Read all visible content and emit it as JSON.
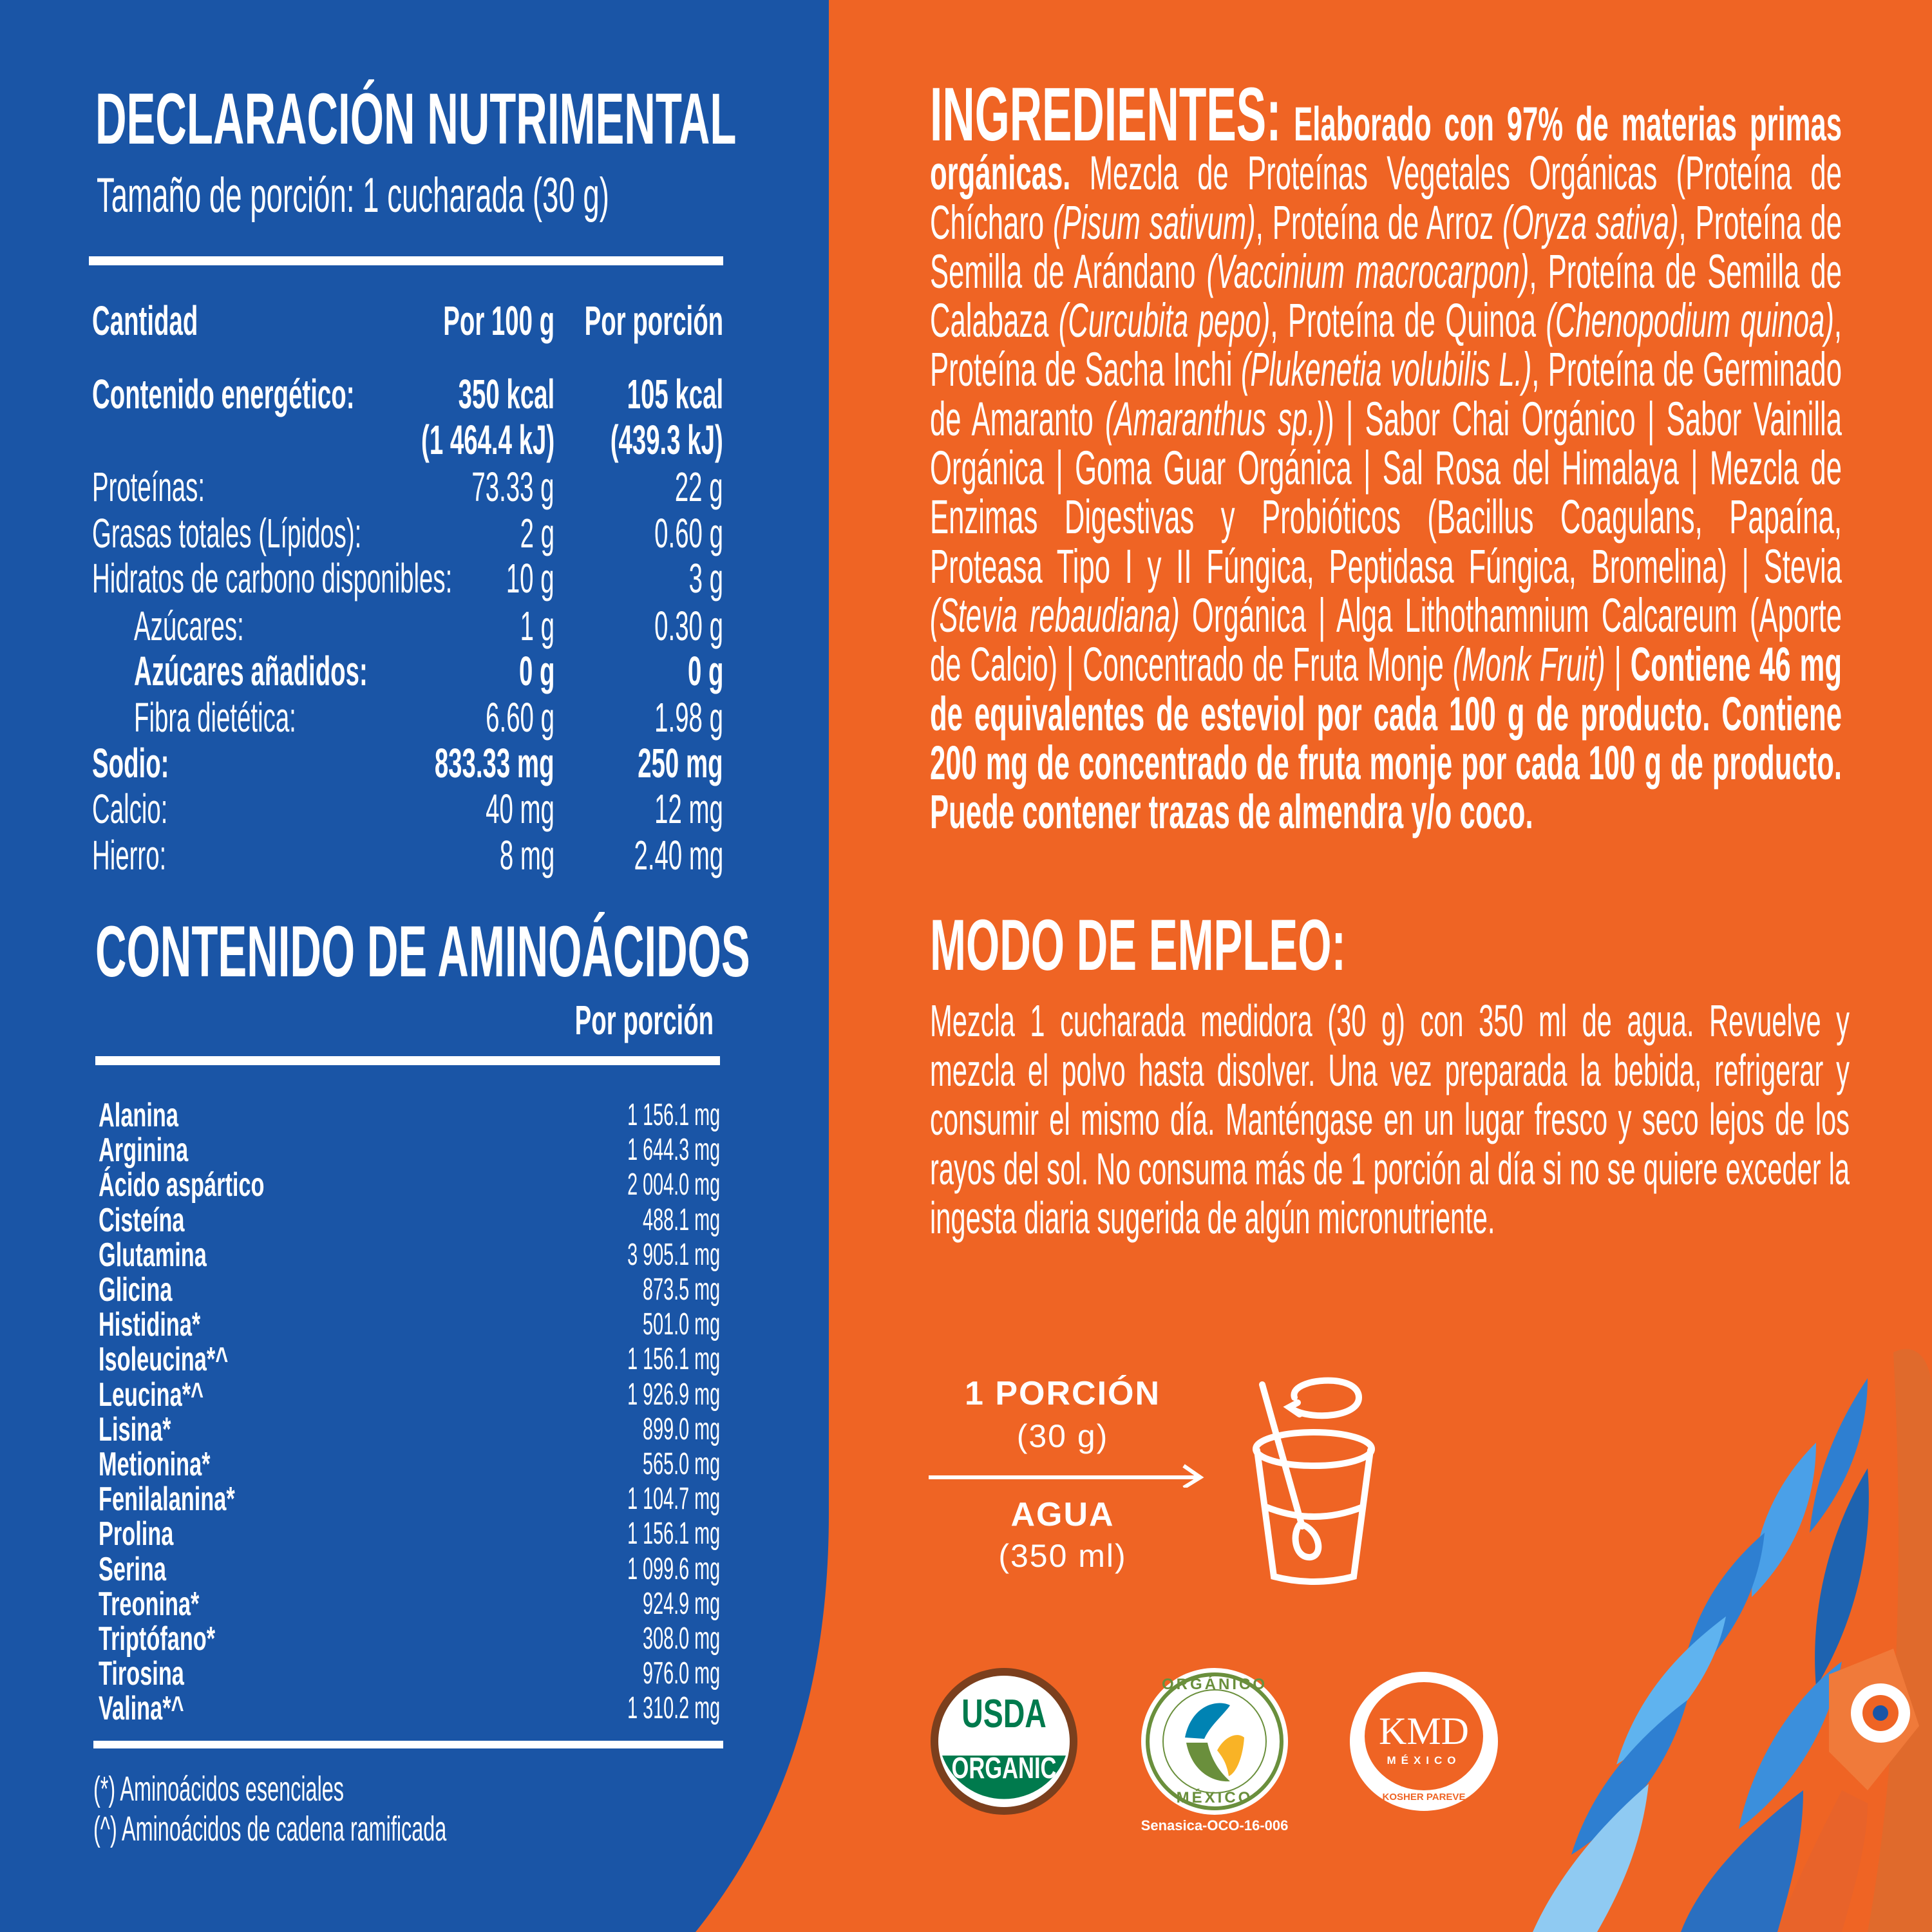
{
  "colors": {
    "blue": "#1a55a6",
    "orange": "#ef6424",
    "white": "#ffffff",
    "usda_green": "#007a4d",
    "usda_brown": "#7b3f1d",
    "organico_green": "#6a8f3c",
    "organico_blue": "#0083b3",
    "organico_yellow": "#f9b326"
  },
  "nutrition": {
    "title": "DECLARACIÓN NUTRIMENTAL",
    "serving": "Tamaño de porción: 1 cucharada (30 g)",
    "headers": [
      "Cantidad",
      "Por 100 g",
      "Por porción"
    ],
    "rows": [
      {
        "label": "Contenido energético:",
        "per100": "350 kcal",
        "perServing": "105 kcal",
        "bold": true,
        "indent": false
      },
      {
        "label": "",
        "per100": "(1 464.4 kJ)",
        "perServing": "(439.3 kJ)",
        "bold": true,
        "indent": false
      },
      {
        "label": "Proteínas:",
        "per100": "73.33 g",
        "perServing": "22 g",
        "bold": false,
        "indent": false
      },
      {
        "label": "Grasas totales (Lípidos):",
        "per100": "2 g",
        "perServing": "0.60 g",
        "bold": false,
        "indent": false
      },
      {
        "label": "Hidratos de carbono disponibles:",
        "per100": "10 g",
        "perServing": "3 g",
        "bold": false,
        "indent": false
      },
      {
        "label": "Azúcares:",
        "per100": "1 g",
        "perServing": "0.30 g",
        "bold": false,
        "indent": true
      },
      {
        "label": "Azúcares añadidos:",
        "per100": "0 g",
        "perServing": "0 g",
        "bold": true,
        "indent": true
      },
      {
        "label": "Fibra dietética:",
        "per100": "6.60 g",
        "perServing": "1.98 g",
        "bold": false,
        "indent": true
      },
      {
        "label": "Sodio:",
        "per100": "833.33 mg",
        "perServing": "250 mg",
        "bold": true,
        "indent": false
      },
      {
        "label": "Calcio:",
        "per100": "40 mg",
        "perServing": "12 mg",
        "bold": false,
        "indent": false
      },
      {
        "label": "Hierro:",
        "per100": "8 mg",
        "perServing": "2.40 mg",
        "bold": false,
        "indent": false
      }
    ]
  },
  "aminoacids": {
    "title": "CONTENIDO DE AMINOÁCIDOS",
    "column": "Por porción",
    "rows": [
      {
        "name": "Alanina",
        "value": "1 156.1 mg"
      },
      {
        "name": "Arginina",
        "value": "1 644.3 mg"
      },
      {
        "name": "Ácido aspártico",
        "value": "2 004.0 mg"
      },
      {
        "name": "Cisteína",
        "value": "488.1 mg"
      },
      {
        "name": "Glutamina",
        "value": "3 905.1 mg"
      },
      {
        "name": "Glicina",
        "value": "873.5 mg"
      },
      {
        "name": "Histidina*",
        "value": "501.0 mg"
      },
      {
        "name": "Isoleucina*^",
        "value": "1 156.1 mg"
      },
      {
        "name": "Leucina*^",
        "value": "1 926.9 mg"
      },
      {
        "name": "Lisina*",
        "value": "899.0 mg"
      },
      {
        "name": "Metionina*",
        "value": "565.0 mg"
      },
      {
        "name": "Fenilalanina*",
        "value": "1 104.7 mg"
      },
      {
        "name": "Prolina",
        "value": "1 156.1 mg"
      },
      {
        "name": "Serina",
        "value": "1 099.6 mg"
      },
      {
        "name": "Treonina*",
        "value": "924.9 mg"
      },
      {
        "name": "Triptófano*",
        "value": "308.0 mg"
      },
      {
        "name": "Tirosina",
        "value": "976.0 mg"
      },
      {
        "name": "Valina*^",
        "value": "1 310.2 mg"
      }
    ],
    "footnotes": [
      "(*)  Aminoácidos esenciales",
      "(^)  Aminoácidos de cadena ramificada"
    ]
  },
  "ingredients": {
    "title": "INGREDIENTES:",
    "segments": [
      {
        "t": " Elaborado con 97% de materias primas orgánicas.",
        "s": "b"
      },
      {
        "t": " Mezcla de Proteínas Vegetales Orgánicas (Proteína de Chícharo ",
        "s": "n"
      },
      {
        "t": "(Pisum sativum)",
        "s": "i"
      },
      {
        "t": ", Proteína de Arroz ",
        "s": "n"
      },
      {
        "t": "(Oryza sativa)",
        "s": "i"
      },
      {
        "t": ", Proteína de Semilla de Arándano ",
        "s": "n"
      },
      {
        "t": "(Vaccinium macrocarpon)",
        "s": "i"
      },
      {
        "t": ", Proteína de Semilla de Calabaza ",
        "s": "n"
      },
      {
        "t": "(Curcubita pepo)",
        "s": "i"
      },
      {
        "t": ", Proteína de Quinoa ",
        "s": "n"
      },
      {
        "t": "(Chenopodium quinoa)",
        "s": "i"
      },
      {
        "t": ", Proteína de Sacha Inchi ",
        "s": "n"
      },
      {
        "t": "(Plukenetia volubilis L.)",
        "s": "i"
      },
      {
        "t": ", Proteína de Germinado de Amaranto ",
        "s": "n"
      },
      {
        "t": "(Amaranthus sp.)",
        "s": "i"
      },
      {
        "t": ") | Sabor Chai Orgánico | Sabor Vainilla Orgánica | Goma Guar Orgánica | Sal Rosa del Himalaya | Mezcla de Enzimas Digestivas y Probióticos (Bacillus Coagulans, Papaína, Proteasa Tipo I y II Fúngica, Peptidasa Fúngica, Bromelina) | Stevia ",
        "s": "n"
      },
      {
        "t": "(Stevia rebaudiana)",
        "s": "i"
      },
      {
        "t": " Orgánica | Alga Lithothamnium Calcareum (Aporte de Calcio) | Concentrado de Fruta Monje ",
        "s": "n"
      },
      {
        "t": "(Monk Fruit)",
        "s": "i"
      },
      {
        "t": " | ",
        "s": "n"
      },
      {
        "t": "Contiene 46 mg de equivalentes de esteviol por cada 100 g de producto. Contiene 200 mg de concentrado de fruta monje por cada 100 g de producto. Puede contener trazas de almendra y/o coco.",
        "s": "b"
      }
    ]
  },
  "usage": {
    "title": "MODO DE EMPLEO:",
    "text": "Mezcla 1 cucharada medidora (30 g) con 350 ml de agua. Revuelve y mezcla el polvo hasta disolver. Una vez preparada la bebida, refrigerar y consumir el mismo día. Manténgase en un lugar fresco y seco lejos de los rayos del sol. No consuma más de 1 porción al día si no se quiere exceder la ingesta diaria sugerida de algún micronutriente."
  },
  "diagram": {
    "portion": "1 PORCIÓN",
    "portion_amount": "(30 g)",
    "water": "AGUA",
    "water_amount": "(350 ml)",
    "icon": "glass-with-spoon-stirring-icon"
  },
  "certifications": {
    "usda": {
      "top": "USDA",
      "bottom": "ORGANIC"
    },
    "organico": {
      "top": "ORGÁNICO",
      "bottom": "MÉXICO",
      "code": "Senasica-OCO-16-006"
    },
    "kmd": {
      "main": "KMD",
      "sub": "MÉXICO",
      "ring": "KOSHER PAREVE"
    }
  }
}
